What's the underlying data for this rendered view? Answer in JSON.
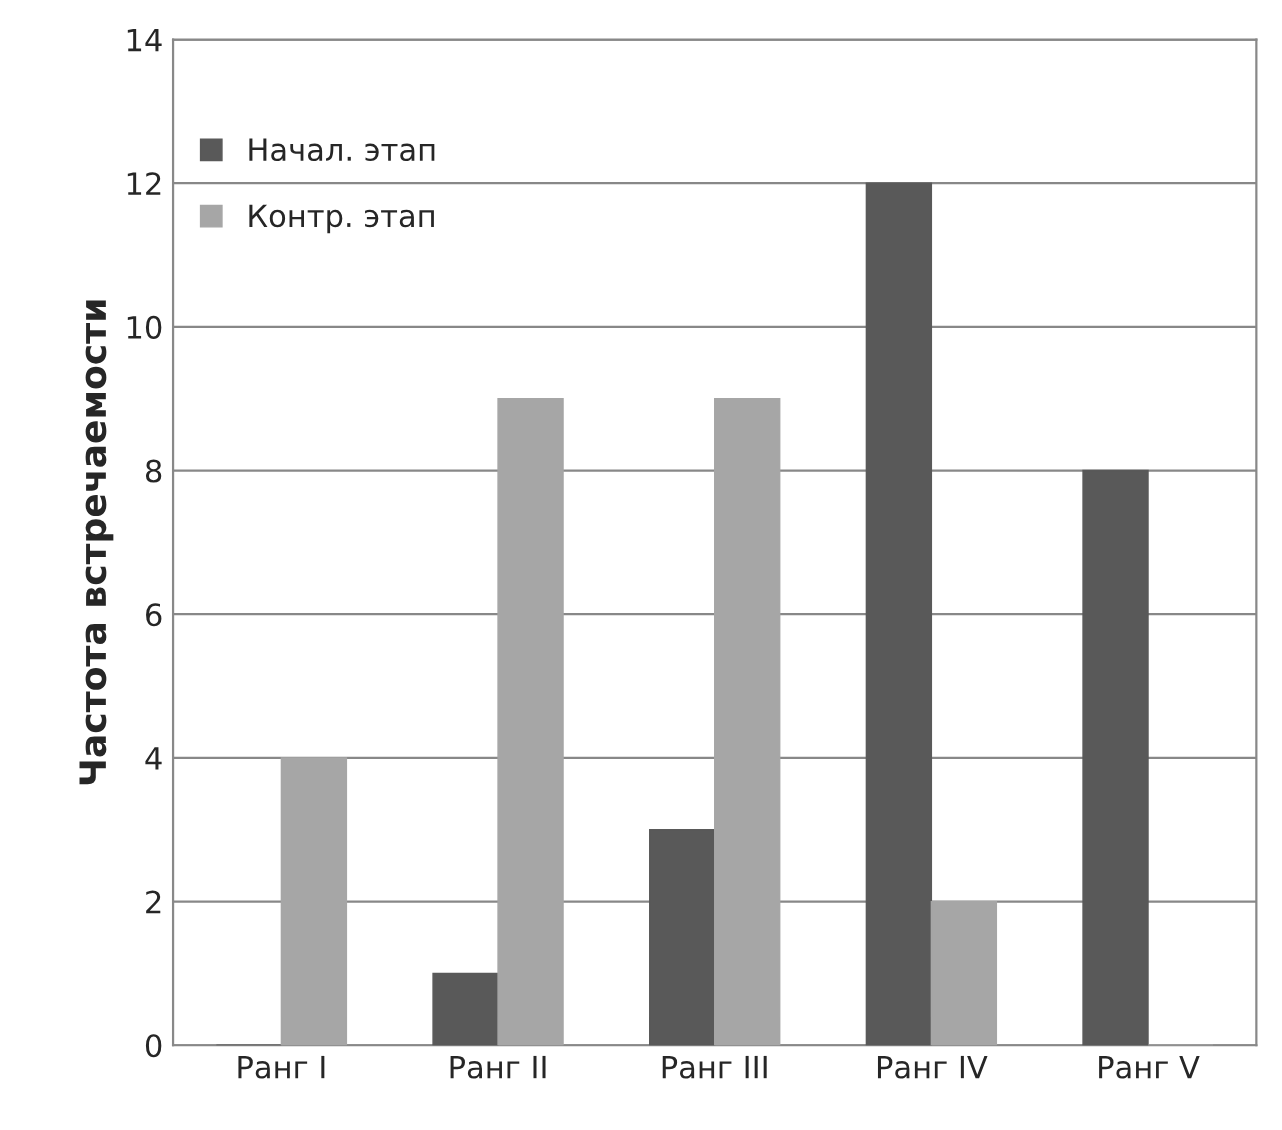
{
  "chart_data": {
    "type": "bar",
    "ylabel": "Частота встречаемости",
    "categories": [
      "Ранг I",
      "Ранг II",
      "Ранг III",
      "Ранг IV",
      "Ранг V"
    ],
    "series": [
      {
        "name": "Начал. этап",
        "color": "#595959",
        "values": [
          0,
          1,
          3,
          12,
          8
        ]
      },
      {
        "name": "Контр. этап",
        "color": "#a6a6a6",
        "values": [
          4,
          9,
          9,
          2,
          0
        ]
      }
    ],
    "ylim": [
      0,
      14
    ],
    "yticks": [
      0,
      2,
      4,
      6,
      8,
      10,
      12,
      14
    ],
    "grid": "y",
    "legend": "top left"
  }
}
